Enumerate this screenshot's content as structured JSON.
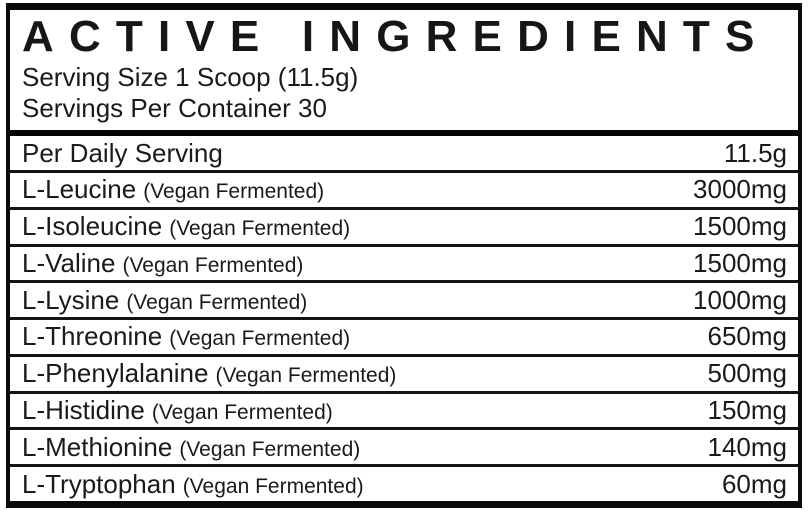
{
  "panel": {
    "title": "ACTIVE INGREDIENTS",
    "serving_size_line": "Serving Size 1 Scoop (11.5g)",
    "servings_per_container_line": "Servings Per Container 30",
    "summary_row": {
      "label": "Per Daily Serving",
      "amount": "11.5g"
    },
    "ingredients": [
      {
        "name": "L-Leucine",
        "note": "(Vegan Fermented)",
        "amount": "3000mg"
      },
      {
        "name": "L-Isoleucine",
        "note": "(Vegan Fermented)",
        "amount": "1500mg"
      },
      {
        "name": "L-Valine",
        "note": "(Vegan Fermented)",
        "amount": "1500mg"
      },
      {
        "name": "L-Lysine",
        "note": "(Vegan Fermented)",
        "amount": "1000mg"
      },
      {
        "name": "L-Threonine",
        "note": "(Vegan Fermented)",
        "amount": "650mg"
      },
      {
        "name": "L-Phenylalanine",
        "note": "(Vegan Fermented)",
        "amount": "500mg"
      },
      {
        "name": "L-Histidine",
        "note": "(Vegan Fermented)",
        "amount": "150mg"
      },
      {
        "name": "L-Methionine",
        "note": "(Vegan Fermented)",
        "amount": "140mg"
      },
      {
        "name": "L-Tryptophan",
        "note": "(Vegan Fermented)",
        "amount": "60mg"
      }
    ]
  },
  "colors": {
    "background": "#ffffff",
    "border": "#0a0a0a",
    "text": "#1a1a1a",
    "divider": "#141414"
  }
}
